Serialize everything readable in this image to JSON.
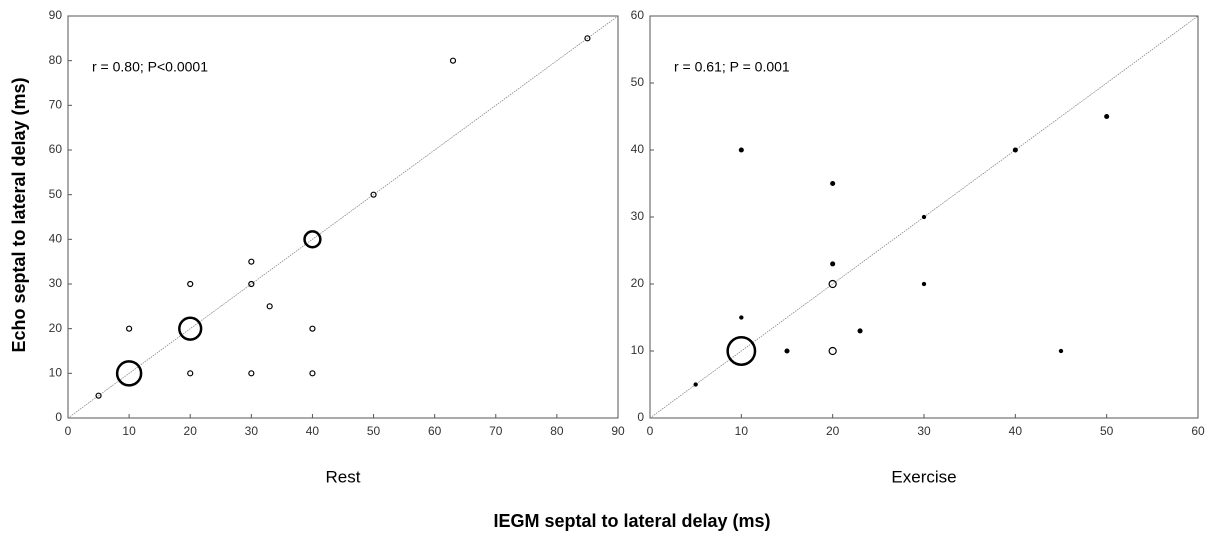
{
  "ylabel": "Echo septal to lateral delay (ms)",
  "xlabel": "IEGM septal to lateral delay (ms)",
  "chart_data": [
    {
      "type": "scatter",
      "xlabel": "Rest",
      "annotation": "r = 0.80; P<0.0001",
      "diagonal": true,
      "color": "#000000",
      "xlim": [
        0,
        90
      ],
      "ylim": [
        0,
        90
      ],
      "xticks": [
        0,
        10,
        20,
        30,
        40,
        50,
        60,
        70,
        80,
        90
      ],
      "yticks": [
        0,
        10,
        20,
        30,
        40,
        50,
        60,
        70,
        80,
        90
      ],
      "x": [
        5,
        10,
        10,
        20,
        20,
        20,
        30,
        30,
        30,
        33,
        40,
        40,
        40,
        50,
        63,
        85
      ],
      "y": [
        5,
        10,
        20,
        10,
        20,
        30,
        10,
        30,
        35,
        25,
        10,
        20,
        40,
        50,
        80,
        85
      ],
      "sizes": [
        1,
        23,
        1,
        1,
        19,
        1,
        1,
        1,
        1,
        1,
        1,
        1,
        10,
        1,
        1,
        1
      ]
    },
    {
      "type": "scatter",
      "xlabel": "Exercise",
      "annotation": "r = 0.61; P = 0.001",
      "diagonal": true,
      "color": "#000000",
      "xlim": [
        0,
        60
      ],
      "ylim": [
        0,
        60
      ],
      "xticks": [
        0,
        10,
        20,
        30,
        40,
        50,
        60
      ],
      "yticks": [
        0,
        10,
        20,
        30,
        40,
        50,
        60
      ],
      "x": [
        5,
        10,
        10,
        10,
        15,
        20,
        20,
        20,
        20,
        23,
        30,
        30,
        40,
        45,
        50
      ],
      "y": [
        5,
        10,
        15,
        40,
        10,
        10,
        20,
        23,
        35,
        13,
        20,
        30,
        40,
        10,
        45
      ],
      "sizes": [
        0.4,
        30,
        0.4,
        0.6,
        0.6,
        2,
        2,
        0.6,
        0.6,
        0.6,
        0.4,
        0.4,
        0.6,
        0.4,
        0.6
      ]
    }
  ]
}
